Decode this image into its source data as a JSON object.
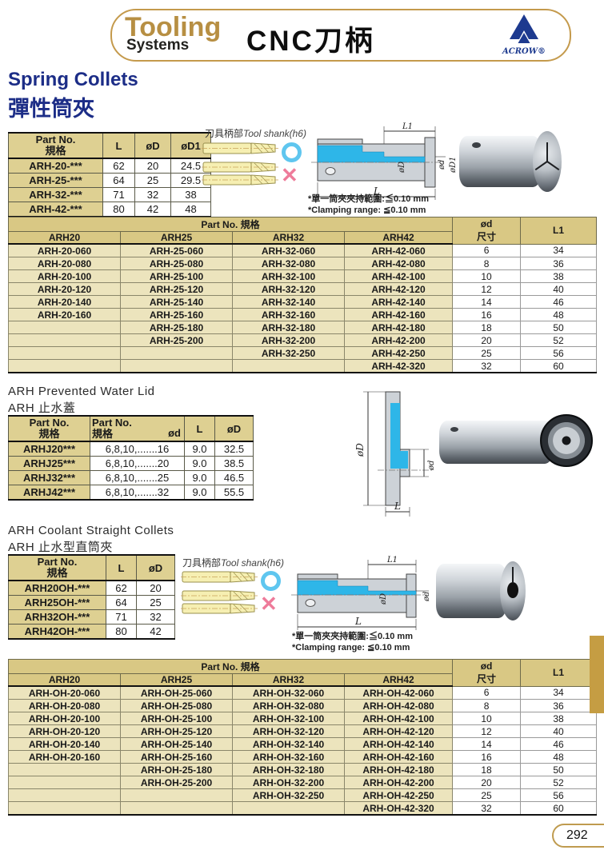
{
  "colors": {
    "gold_accent": "#c49a4c",
    "brand_gold": "#b78f43",
    "title_navy": "#1c2d87",
    "logo_navy": "#1d3a8f",
    "table_header_tan": "#d9c884",
    "table_body_tan": "#ece4bd",
    "cyan_highlight": "#2eb6e8",
    "ok_blue": "#5fc6ef",
    "x_pink": "#ee7b9a"
  },
  "header": {
    "brand_top": "Tooling",
    "brand_bottom": "Systems",
    "title": "CNC刀柄",
    "logo_text": "ACROW®"
  },
  "spring": {
    "title_en": "Spring Collets",
    "title_zh": "彈性筒夾",
    "spec_table": {
      "h_part1": "Part No.",
      "h_part2": "規格",
      "h_l": "L",
      "h_d": "øD",
      "h_d1": "øD1",
      "rows": [
        [
          "ARH-20-***",
          "62",
          "20",
          "24.5"
        ],
        [
          "ARH-25-***",
          "64",
          "25",
          "29.5"
        ],
        [
          "ARH-32-***",
          "71",
          "32",
          "38"
        ],
        [
          "ARH-42-***",
          "80",
          "42",
          "48"
        ]
      ]
    },
    "tool_shank_zh": "刀具柄部",
    "tool_shank_en": "Tool shank(h6)",
    "note_zh": "*單一筒夾夾持範圍:≦0.10 mm",
    "note_en": "*Clamping range: ≦0.10 mm",
    "dims": {
      "l1": "L1",
      "d": "ød",
      "d1": "øD1",
      "D": "øD",
      "l": "L"
    }
  },
  "arh": {
    "group_header": "Part No. 規格",
    "cols": [
      "ARH20",
      "ARH25",
      "ARH32",
      "ARH42"
    ],
    "h_d_line1": "ød",
    "h_d_line2": "尺寸",
    "h_l1": "L1",
    "rows": [
      [
        "ARH-20-060",
        "ARH-25-060",
        "ARH-32-060",
        "ARH-42-060",
        "6",
        "34"
      ],
      [
        "ARH-20-080",
        "ARH-25-080",
        "ARH-32-080",
        "ARH-42-080",
        "8",
        "36"
      ],
      [
        "ARH-20-100",
        "ARH-25-100",
        "ARH-32-100",
        "ARH-42-100",
        "10",
        "38"
      ],
      [
        "ARH-20-120",
        "ARH-25-120",
        "ARH-32-120",
        "ARH-42-120",
        "12",
        "40"
      ],
      [
        "ARH-20-140",
        "ARH-25-140",
        "ARH-32-140",
        "ARH-42-140",
        "14",
        "46"
      ],
      [
        "ARH-20-160",
        "ARH-25-160",
        "ARH-32-160",
        "ARH-42-160",
        "16",
        "48"
      ],
      [
        "",
        "ARH-25-180",
        "ARH-32-180",
        "ARH-42-180",
        "18",
        "50"
      ],
      [
        "",
        "ARH-25-200",
        "ARH-32-200",
        "ARH-42-200",
        "20",
        "52"
      ],
      [
        "",
        "",
        "ARH-32-250",
        "ARH-42-250",
        "25",
        "56"
      ],
      [
        "",
        "",
        "",
        "ARH-42-320",
        "32",
        "60"
      ]
    ]
  },
  "water": {
    "title_en": "ARH Prevented Water Lid",
    "title_zh": "ARH 止水蓋",
    "h_part1": "Part No.",
    "h_part2": "規格",
    "h_d": "ød",
    "h_l": "L",
    "h_dd": "øD",
    "rows": [
      [
        "ARHJ20***",
        "6,8,10,.......16",
        "9.0",
        "32.5"
      ],
      [
        "ARHJ25***",
        "6,8,10,.......20",
        "9.0",
        "38.5"
      ],
      [
        "ARHJ32***",
        "6,8,10,.......25",
        "9.0",
        "46.5"
      ],
      [
        "ARHJ42***",
        "6,8,10,.......32",
        "9.0",
        "55.5"
      ]
    ],
    "dims": {
      "D": "øD",
      "d": "ød",
      "l": "L"
    }
  },
  "cool": {
    "title_en": "ARH Coolant Straight Collets",
    "title_zh": "ARH 止水型直筒夾",
    "h_part1": "Part No.",
    "h_part2": "規格",
    "h_l": "L",
    "h_d": "øD",
    "rows": [
      [
        "ARH20OH-***",
        "62",
        "20"
      ],
      [
        "ARH25OH-***",
        "64",
        "25"
      ],
      [
        "ARH32OH-***",
        "71",
        "32"
      ],
      [
        "ARH42OH-***",
        "80",
        "42"
      ]
    ],
    "tool_shank_zh": "刀具柄部",
    "tool_shank_en": "Tool shank(h6)",
    "note_zh": "*單一筒夾夾持範圍:≦0.10 mm",
    "note_en": "*Clamping range: ≦0.10 mm",
    "dims": {
      "l1": "L1",
      "d": "ød",
      "D": "øD",
      "l": "L"
    }
  },
  "arhoh": {
    "group_header": "Part No. 規格",
    "cols": [
      "ARH20",
      "ARH25",
      "ARH32",
      "ARH42"
    ],
    "h_d_line1": "ød",
    "h_d_line2": "尺寸",
    "h_l1": "L1",
    "rows": [
      [
        "ARH-OH-20-060",
        "ARH-OH-25-060",
        "ARH-OH-32-060",
        "ARH-OH-42-060",
        "6",
        "34"
      ],
      [
        "ARH-OH-20-080",
        "ARH-OH-25-080",
        "ARH-OH-32-080",
        "ARH-OH-42-080",
        "8",
        "36"
      ],
      [
        "ARH-OH-20-100",
        "ARH-OH-25-100",
        "ARH-OH-32-100",
        "ARH-OH-42-100",
        "10",
        "38"
      ],
      [
        "ARH-OH-20-120",
        "ARH-OH-25-120",
        "ARH-OH-32-120",
        "ARH-OH-42-120",
        "12",
        "40"
      ],
      [
        "ARH-OH-20-140",
        "ARH-OH-25-140",
        "ARH-OH-32-140",
        "ARH-OH-42-140",
        "14",
        "46"
      ],
      [
        "ARH-OH-20-160",
        "ARH-OH-25-160",
        "ARH-OH-32-160",
        "ARH-OH-42-160",
        "16",
        "48"
      ],
      [
        "",
        "ARH-OH-25-180",
        "ARH-OH-32-180",
        "ARH-OH-42-180",
        "18",
        "50"
      ],
      [
        "",
        "ARH-OH-25-200",
        "ARH-OH-32-200",
        "ARH-OH-42-200",
        "20",
        "52"
      ],
      [
        "",
        "",
        "ARH-OH-32-250",
        "ARH-OH-42-250",
        "25",
        "56"
      ],
      [
        "",
        "",
        "",
        "ARH-OH-42-320",
        "32",
        "60"
      ]
    ]
  },
  "footer": {
    "page": "292"
  }
}
